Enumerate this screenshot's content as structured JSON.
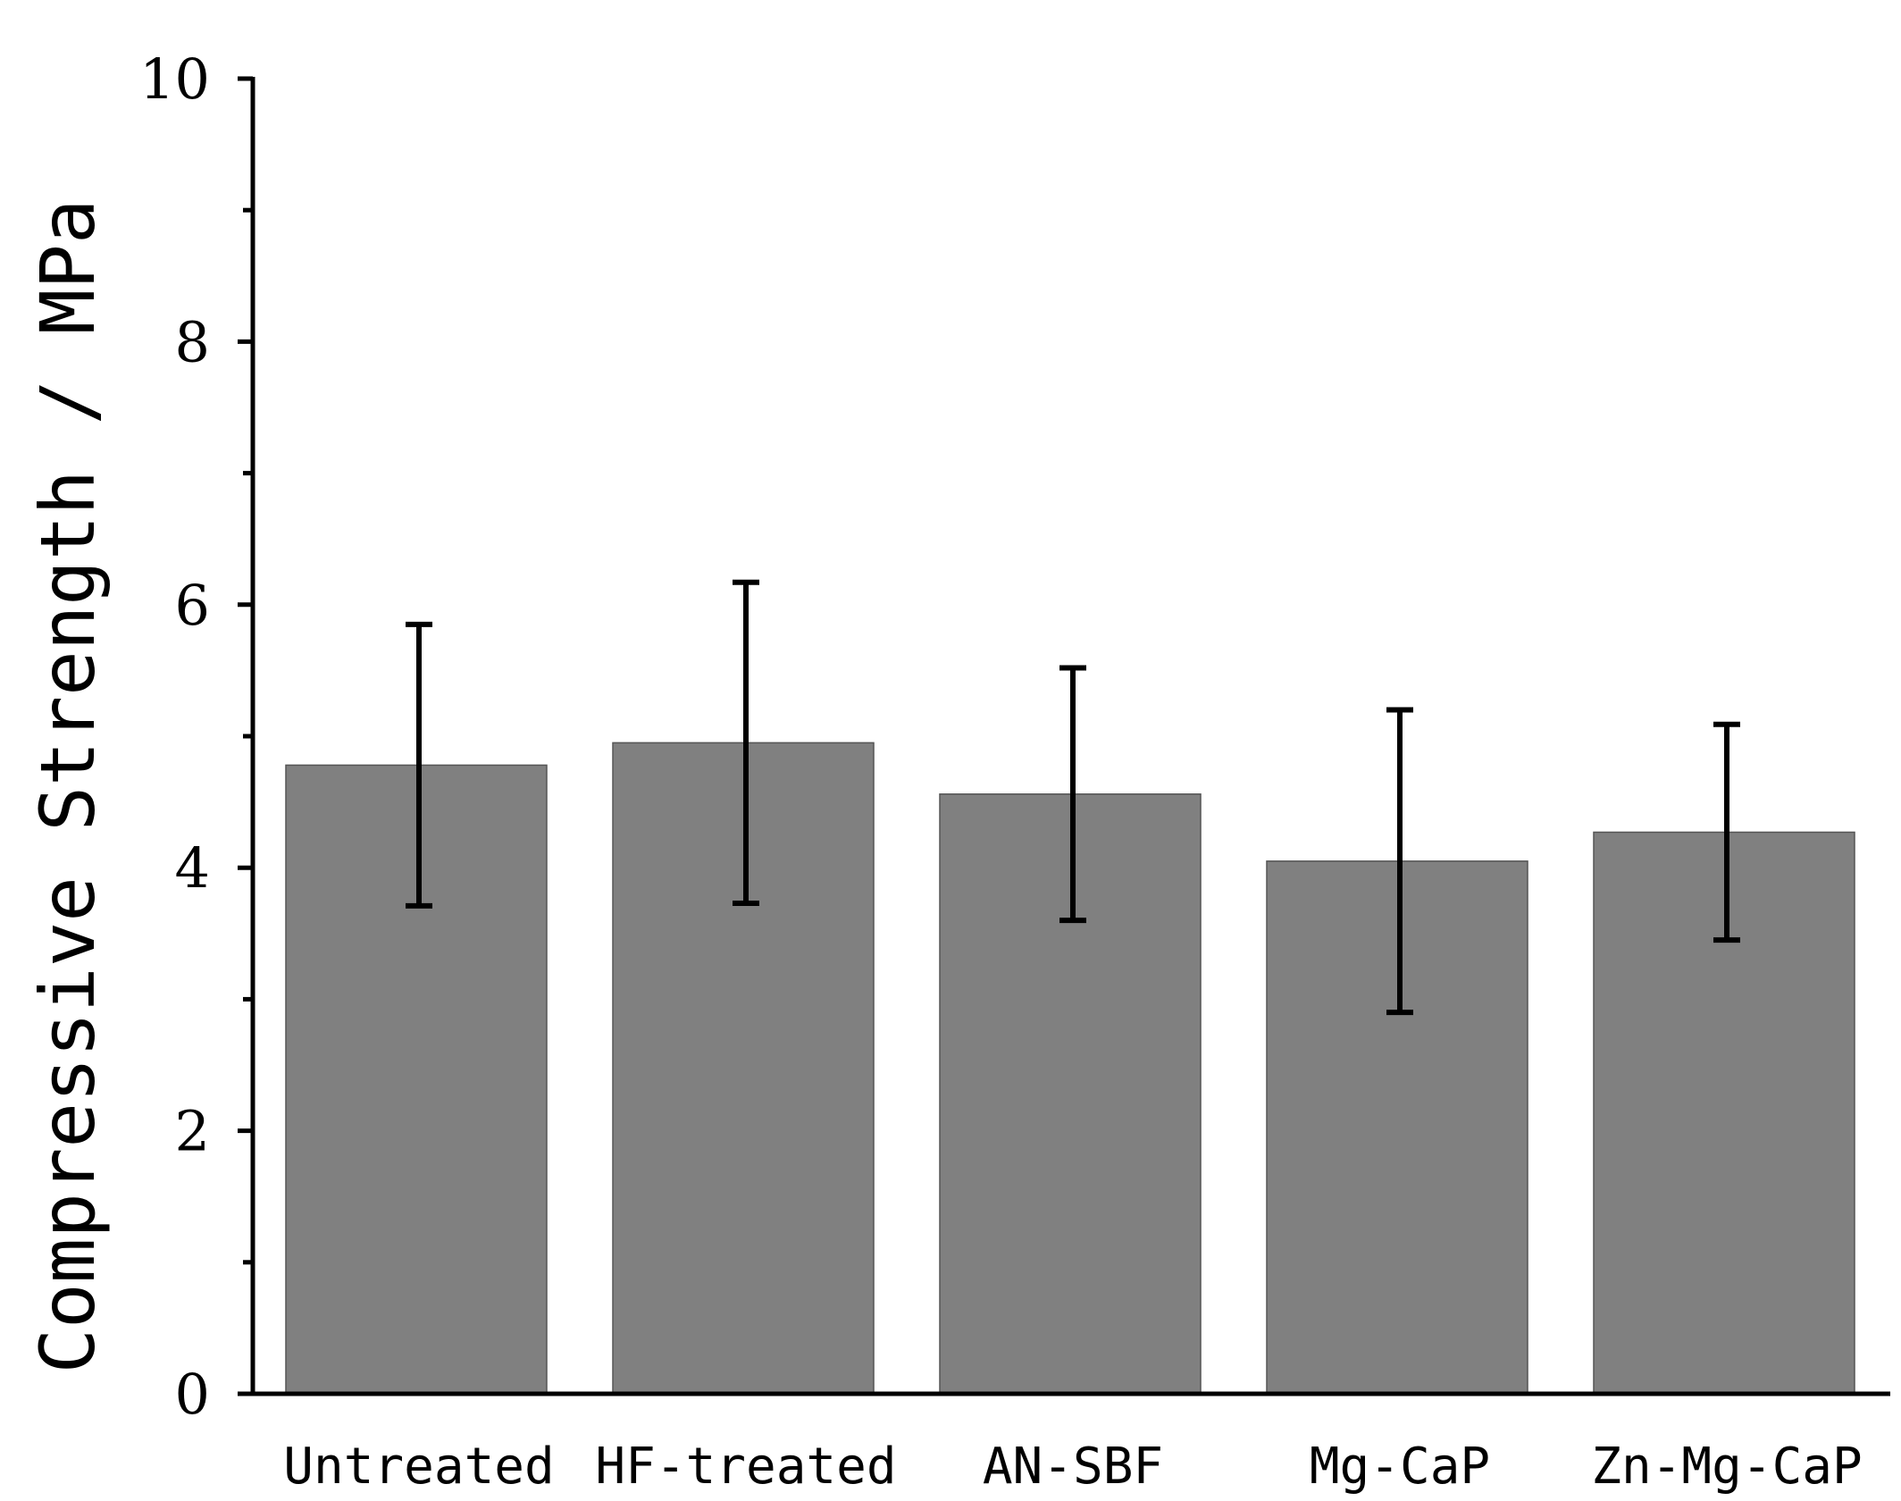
{
  "chart_data": {
    "type": "bar",
    "title": "",
    "xlabel": "",
    "ylabel": "Compressive Strength / MPa",
    "ylim": [
      0,
      10
    ],
    "yticks": [
      0,
      2,
      4,
      6,
      8,
      10
    ],
    "yminor": [
      1,
      3,
      5,
      7,
      9
    ],
    "categories": [
      "Untreated",
      "HF-treated",
      "AN-SBF",
      "Mg-CaP",
      "Zn-Mg-CaP"
    ],
    "values": [
      4.78,
      4.95,
      4.56,
      4.05,
      4.27
    ],
    "errors": [
      1.07,
      1.22,
      0.96,
      1.15,
      0.82
    ],
    "bar_color": "#808080",
    "error_color": "#000000"
  }
}
